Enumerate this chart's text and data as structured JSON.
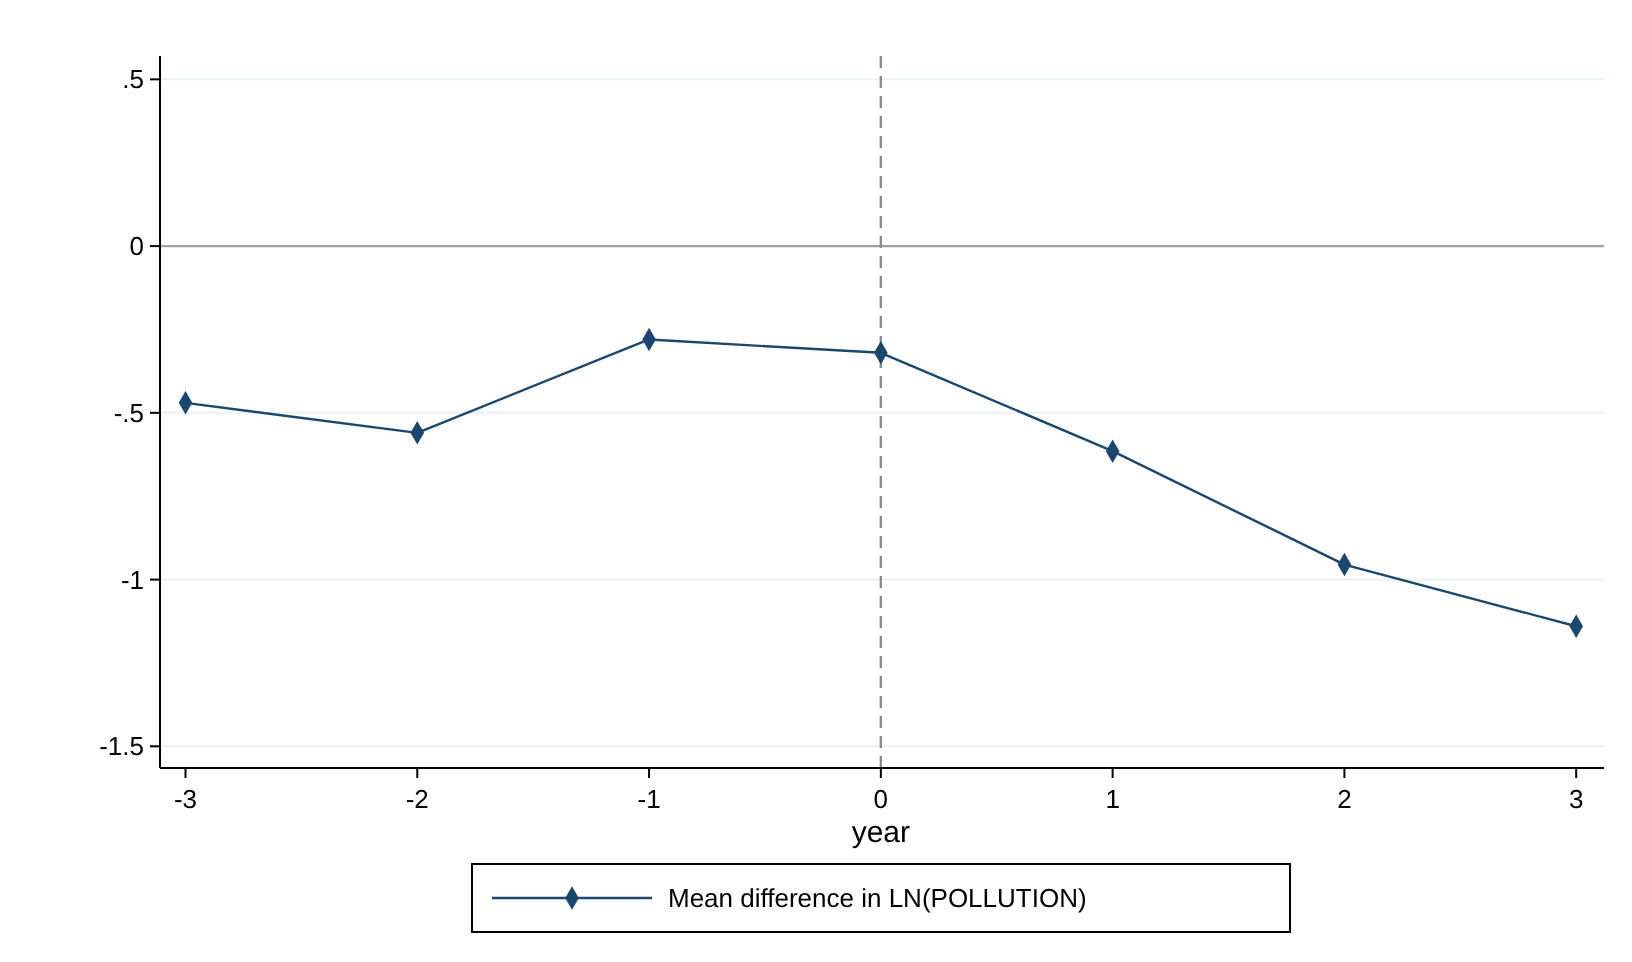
{
  "chart_data": {
    "type": "line",
    "xlabel": "year",
    "x": [
      -3,
      -2,
      -1,
      0,
      1,
      2,
      3
    ],
    "series": [
      {
        "name": "Mean difference in LN(POLLUTION)",
        "color": "#1a476f",
        "values": [
          -0.47,
          -0.56,
          -0.28,
          -0.32,
          -0.615,
          -0.955,
          -1.14
        ]
      }
    ],
    "xlim": [
      -3.11,
      3.12
    ],
    "xticks": [
      -3,
      -2,
      -1,
      0,
      1,
      2,
      3
    ],
    "ylim": [
      -1.565,
      0.57
    ],
    "yticks": [
      {
        "value": 0.5,
        "label": ".5"
      },
      0,
      {
        "value": -0.5,
        "label": "-.5"
      },
      -1,
      -1.5
    ],
    "grid": "y",
    "legend": "bottom",
    "marker": "diamond",
    "line_style": "solid",
    "ref_lines": [
      {
        "axis": "y",
        "value": 0,
        "color": "#a0a0a0",
        "line_style": "solid"
      },
      {
        "axis": "x",
        "value": 0,
        "color": "#8c8c8c",
        "line_style": "dashed"
      }
    ]
  }
}
